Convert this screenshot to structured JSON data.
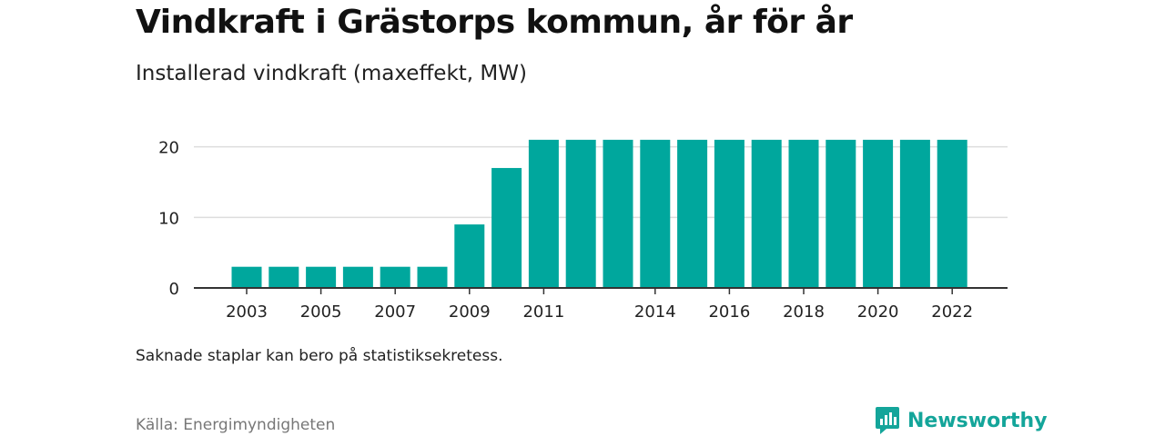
{
  "title": "Vindkraft i Grästorps kommun, år för år",
  "subtitle": "Installerad vindkraft (maxeffekt, MW)",
  "note": "Saknade staplar kan bero på statistiksekretess.",
  "source": "Källa: Energimyndigheten",
  "brand": {
    "name": "Newsworthy",
    "icon": "bar-chart-logo-icon",
    "color": "#14a59a"
  },
  "colors": {
    "bar": "#00a79d",
    "grid": "#dddddd",
    "axis": "#333333"
  },
  "chart_data": {
    "type": "bar",
    "categories": [
      "2003",
      "2004",
      "2005",
      "2006",
      "2007",
      "2008",
      "2009",
      "2010",
      "2011",
      "2012",
      "2013",
      "2014",
      "2015",
      "2016",
      "2017",
      "2018",
      "2019",
      "2020",
      "2021",
      "2022"
    ],
    "values": [
      3,
      3,
      3,
      3,
      3,
      3,
      9,
      17,
      21,
      21,
      21,
      21,
      21,
      21,
      21,
      21,
      21,
      21,
      21,
      21
    ],
    "x_tick_labels": [
      "2003",
      "2005",
      "2007",
      "2009",
      "2011",
      "2014",
      "2016",
      "2018",
      "2020",
      "2022"
    ],
    "y_ticks": [
      0,
      10,
      20
    ],
    "ylim": [
      0,
      21.5
    ],
    "grid": true,
    "xlabel": "",
    "ylabel": ""
  }
}
